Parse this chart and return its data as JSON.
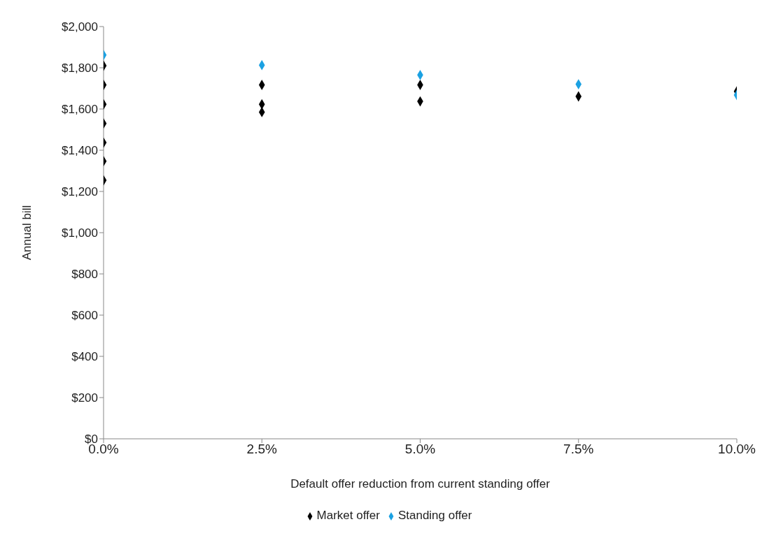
{
  "chart_data": {
    "type": "scatter",
    "xlabel": "Default offer reduction from current standing offer",
    "ylabel": "Annual bill",
    "xlim": [
      0,
      10
    ],
    "xticks": [
      {
        "value": 0,
        "label": "0.0%"
      },
      {
        "value": 2.5,
        "label": "2.5%"
      },
      {
        "value": 5,
        "label": "5.0%"
      },
      {
        "value": 7.5,
        "label": "7.5%"
      },
      {
        "value": 10,
        "label": "10.0%"
      }
    ],
    "ylim": [
      0,
      2000
    ],
    "yticks": [
      {
        "value": 0,
        "label": "$0"
      },
      {
        "value": 200,
        "label": "$200"
      },
      {
        "value": 400,
        "label": "$400"
      },
      {
        "value": 600,
        "label": "$600"
      },
      {
        "value": 800,
        "label": "$800"
      },
      {
        "value": 1000,
        "label": "$1,000"
      },
      {
        "value": 1200,
        "label": "$1,200"
      },
      {
        "value": 1400,
        "label": "$1,400"
      },
      {
        "value": 1600,
        "label": "$1,600"
      },
      {
        "value": 1800,
        "label": "$1,800"
      },
      {
        "value": 2000,
        "label": "$2,000"
      }
    ],
    "grid": false,
    "legend": "bottom",
    "marker": "diamond",
    "series": [
      {
        "name": "Market offer",
        "color": "#000000",
        "x": [
          0,
          0,
          0,
          0,
          0,
          0,
          0,
          2.5,
          2.5,
          2.5,
          5,
          5,
          7.5,
          10
        ],
        "values": [
          1810,
          1717,
          1623,
          1530,
          1437,
          1347,
          1254,
          1717,
          1623,
          1585,
          1717,
          1637,
          1661,
          1686
        ]
      },
      {
        "name": "Standing offer",
        "color": "#1ba1e2",
        "x": [
          0,
          2.5,
          5,
          7.5,
          10
        ],
        "values": [
          1862,
          1813,
          1765,
          1720,
          1668
        ]
      }
    ]
  }
}
